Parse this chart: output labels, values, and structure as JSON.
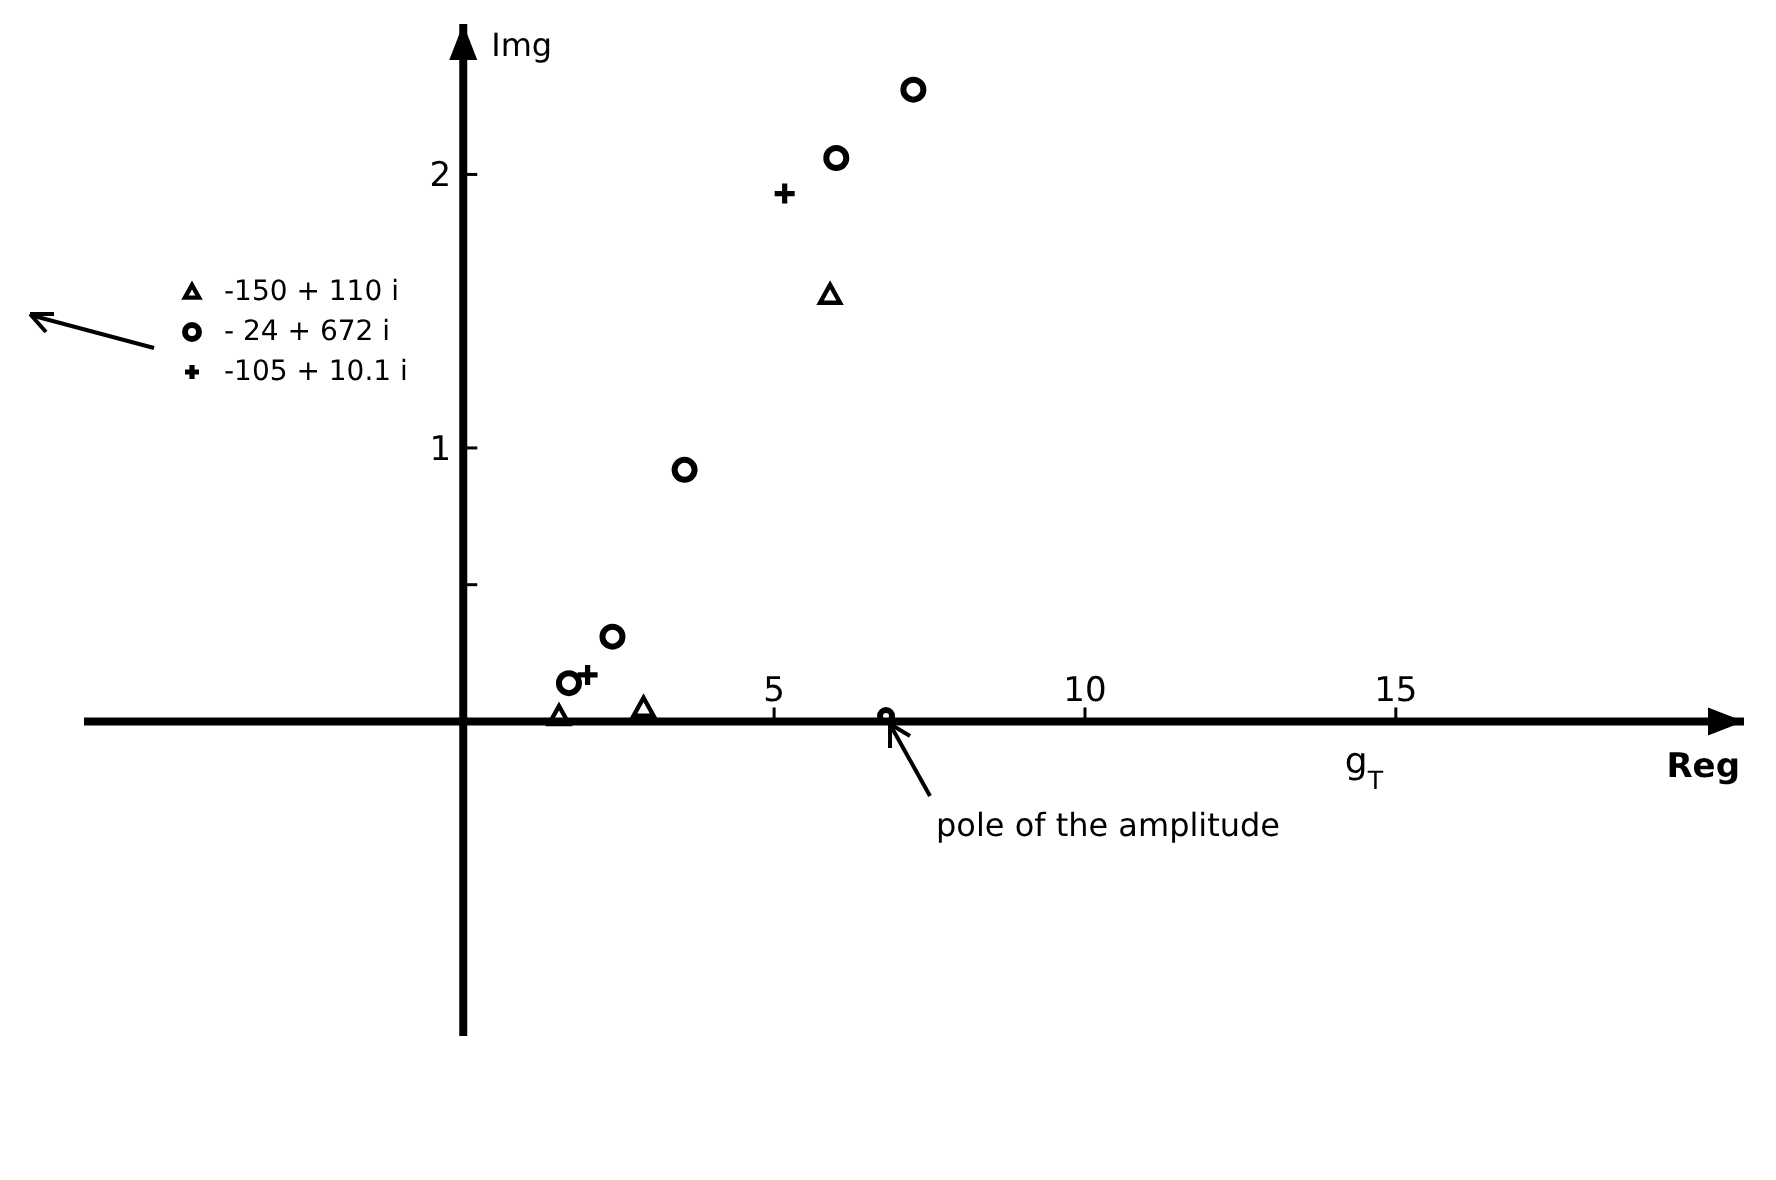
{
  "chart_data": {
    "type": "scatter",
    "xlabel": "Reg",
    "ylabel": "Img",
    "xlim": [
      -6.1,
      20.6
    ],
    "ylim": [
      -1.15,
      2.55
    ],
    "xticks": [
      5,
      10,
      15
    ],
    "yticks": [
      {
        "value": 0.5,
        "label": null
      },
      1,
      2
    ],
    "legend": "top left",
    "series": [
      {
        "name": "-150 + 110 i",
        "color": "#000000",
        "marker": "triangle",
        "x": [
          1.54,
          2.9,
          5.9
        ],
        "values": [
          0.02,
          0.05,
          1.56
        ]
      },
      {
        "name": "- 24 + 672 i",
        "color": "#000000",
        "marker": "circle",
        "x": [
          1.7,
          2.4,
          3.56,
          6.0,
          7.24
        ],
        "values": [
          0.14,
          0.31,
          0.92,
          2.06,
          2.31
        ]
      },
      {
        "name": "-105 + 10.1 i",
        "color": "#000000",
        "marker": "cross",
        "x": [
          2.0,
          5.17
        ],
        "values": [
          0.17,
          1.93
        ]
      },
      {
        "color": "#000000",
        "marker": "circle",
        "x": [
          6.8
        ],
        "values": [
          0.02
        ]
      }
    ],
    "annotations": [
      {
        "text": "pole of the amplitude",
        "x": 6.8,
        "y": 0.02
      },
      "g$_{T}$"
    ]
  }
}
